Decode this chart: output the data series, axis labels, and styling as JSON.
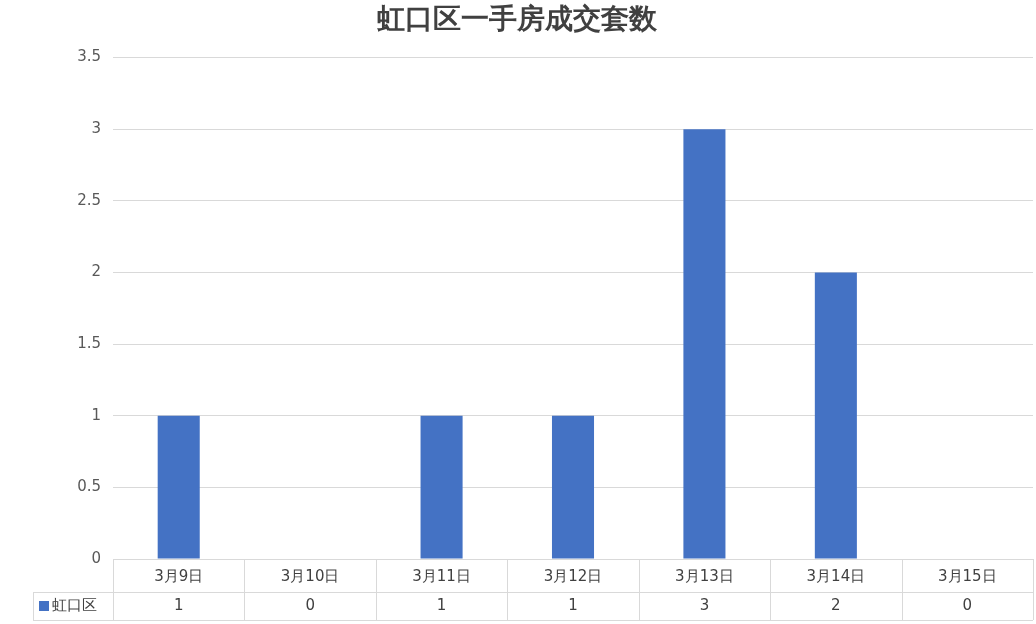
{
  "chart_data": {
    "type": "bar",
    "title": "虹口区一手房成交套数",
    "categories": [
      "3月9日",
      "3月10日",
      "3月11日",
      "3月12日",
      "3月13日",
      "3月14日",
      "3月15日"
    ],
    "series": [
      {
        "name": "虹口区",
        "color": "#4472c4",
        "values": [
          1,
          0,
          1,
          1,
          3,
          2,
          0
        ]
      }
    ],
    "ylim": [
      0,
      3.5
    ],
    "yticks": [
      0,
      0.5,
      1,
      1.5,
      2,
      2.5,
      3,
      3.5
    ],
    "grid": "y",
    "legend": "bottom",
    "data_labels": true
  }
}
